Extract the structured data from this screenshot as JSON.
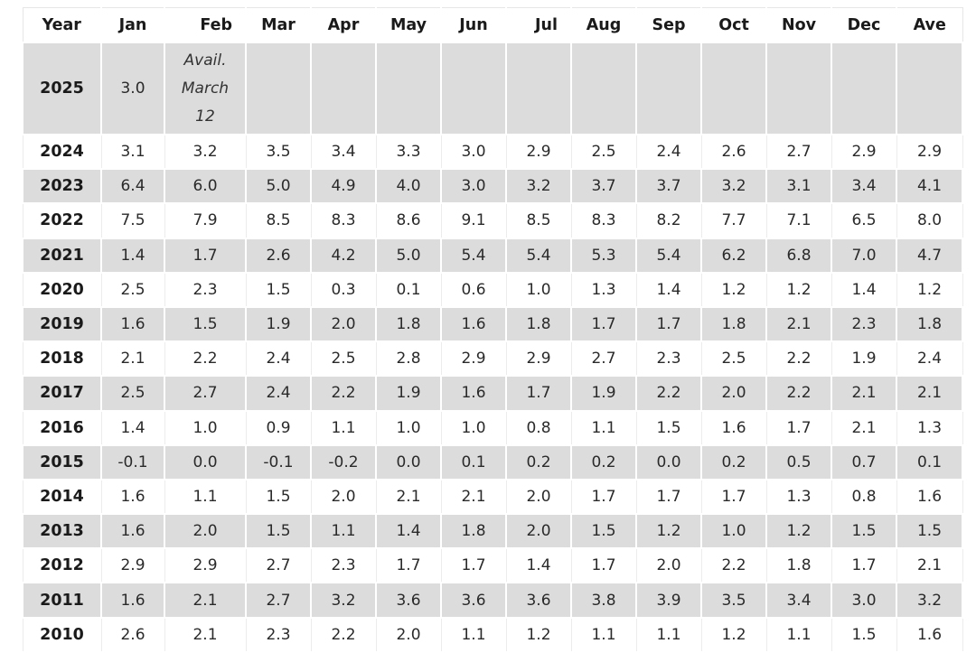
{
  "table": {
    "headers": [
      "Year",
      "Jan",
      "Feb",
      "Mar",
      "Apr",
      "May",
      "Jun",
      "Jul",
      "Aug",
      "Sep",
      "Oct",
      "Nov",
      "Dec",
      "Ave"
    ],
    "first_row": {
      "year": "2025",
      "jan": "3.0",
      "feb_note_lines": [
        "Avail.",
        "March",
        "12"
      ]
    },
    "rows": [
      {
        "year": "2024",
        "values": [
          "3.1",
          "3.2",
          "3.5",
          "3.4",
          "3.3",
          "3.0",
          "2.9",
          "2.5",
          "2.4",
          "2.6",
          "2.7",
          "2.9",
          "2.9"
        ]
      },
      {
        "year": "2023",
        "values": [
          "6.4",
          "6.0",
          "5.0",
          "4.9",
          "4.0",
          "3.0",
          "3.2",
          "3.7",
          "3.7",
          "3.2",
          "3.1",
          "3.4",
          "4.1"
        ]
      },
      {
        "year": "2022",
        "values": [
          "7.5",
          "7.9",
          "8.5",
          "8.3",
          "8.6",
          "9.1",
          "8.5",
          "8.3",
          "8.2",
          "7.7",
          "7.1",
          "6.5",
          "8.0"
        ]
      },
      {
        "year": "2021",
        "values": [
          "1.4",
          "1.7",
          "2.6",
          "4.2",
          "5.0",
          "5.4",
          "5.4",
          "5.3",
          "5.4",
          "6.2",
          "6.8",
          "7.0",
          "4.7"
        ]
      },
      {
        "year": "2020",
        "values": [
          "2.5",
          "2.3",
          "1.5",
          "0.3",
          "0.1",
          "0.6",
          "1.0",
          "1.3",
          "1.4",
          "1.2",
          "1.2",
          "1.4",
          "1.2"
        ]
      },
      {
        "year": "2019",
        "values": [
          "1.6",
          "1.5",
          "1.9",
          "2.0",
          "1.8",
          "1.6",
          "1.8",
          "1.7",
          "1.7",
          "1.8",
          "2.1",
          "2.3",
          "1.8"
        ]
      },
      {
        "year": "2018",
        "values": [
          "2.1",
          "2.2",
          "2.4",
          "2.5",
          "2.8",
          "2.9",
          "2.9",
          "2.7",
          "2.3",
          "2.5",
          "2.2",
          "1.9",
          "2.4"
        ]
      },
      {
        "year": "2017",
        "values": [
          "2.5",
          "2.7",
          "2.4",
          "2.2",
          "1.9",
          "1.6",
          "1.7",
          "1.9",
          "2.2",
          "2.0",
          "2.2",
          "2.1",
          "2.1"
        ]
      },
      {
        "year": "2016",
        "values": [
          "1.4",
          "1.0",
          "0.9",
          "1.1",
          "1.0",
          "1.0",
          "0.8",
          "1.1",
          "1.5",
          "1.6",
          "1.7",
          "2.1",
          "1.3"
        ]
      },
      {
        "year": "2015",
        "values": [
          "-0.1",
          "0.0",
          "-0.1",
          "-0.2",
          "0.0",
          "0.1",
          "0.2",
          "0.2",
          "0.0",
          "0.2",
          "0.5",
          "0.7",
          "0.1"
        ]
      },
      {
        "year": "2014",
        "values": [
          "1.6",
          "1.1",
          "1.5",
          "2.0",
          "2.1",
          "2.1",
          "2.0",
          "1.7",
          "1.7",
          "1.7",
          "1.3",
          "0.8",
          "1.6"
        ]
      },
      {
        "year": "2013",
        "values": [
          "1.6",
          "2.0",
          "1.5",
          "1.1",
          "1.4",
          "1.8",
          "2.0",
          "1.5",
          "1.2",
          "1.0",
          "1.2",
          "1.5",
          "1.5"
        ]
      },
      {
        "year": "2012",
        "values": [
          "2.9",
          "2.9",
          "2.7",
          "2.3",
          "1.7",
          "1.7",
          "1.4",
          "1.7",
          "2.0",
          "2.2",
          "1.8",
          "1.7",
          "2.1"
        ]
      },
      {
        "year": "2011",
        "values": [
          "1.6",
          "2.1",
          "2.7",
          "3.2",
          "3.6",
          "3.6",
          "3.6",
          "3.8",
          "3.9",
          "3.5",
          "3.4",
          "3.0",
          "3.2"
        ]
      },
      {
        "year": "2010",
        "values": [
          "2.6",
          "2.1",
          "2.3",
          "2.2",
          "2.0",
          "1.1",
          "1.2",
          "1.1",
          "1.1",
          "1.2",
          "1.1",
          "1.5",
          "1.6"
        ]
      }
    ]
  },
  "colors": {
    "shaded_row": "#dcdcdc",
    "plain_row": "#ffffff",
    "text": "#222222"
  }
}
